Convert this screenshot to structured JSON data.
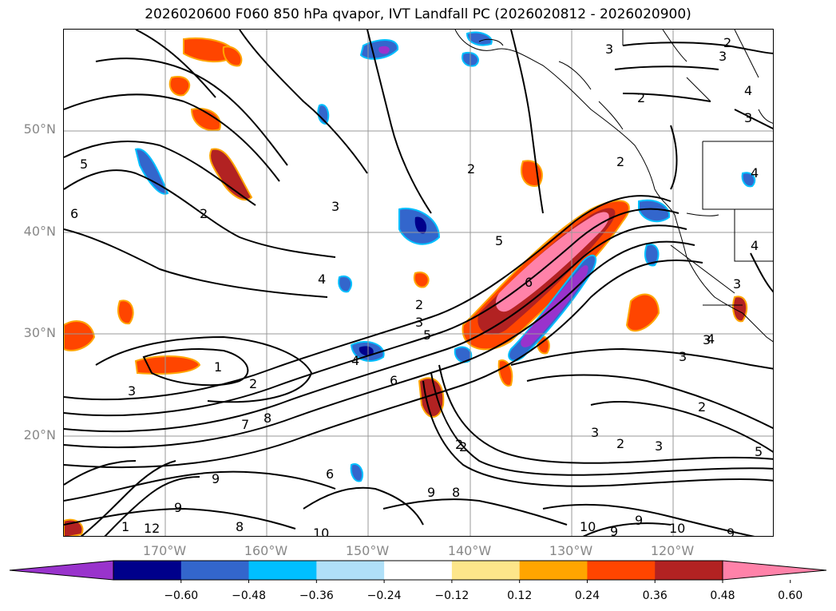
{
  "title": "2026020600 F060 850 hPa qvapor, IVT Landfall PC (2026020812 - 2026020900)",
  "lat_labels": [
    "50°N",
    "40°N",
    "30°N",
    "20°N"
  ],
  "lon_labels": [
    "170°W",
    "160°W",
    "150°W",
    "140°W",
    "130°W",
    "120°W"
  ],
  "colorbar": {
    "colors": [
      "#9933cc",
      "#00008b",
      "#3366cc",
      "#00bfff",
      "#b0e0f8",
      "#ffffff",
      "#fde68a",
      "#ffa500",
      "#ff4500",
      "#b22222",
      "#ff82a9"
    ],
    "tick_labels": [
      "−0.60",
      "−0.48",
      "−0.36",
      "−0.24",
      "−0.12",
      "0.12",
      "0.24",
      "0.36",
      "0.48",
      "0.60"
    ]
  },
  "contour_labels": [
    "2",
    "3",
    "2",
    "3",
    "4",
    "3",
    "2",
    "5",
    "6",
    "2",
    "3",
    "4",
    "6",
    "2",
    "1",
    "2",
    "3",
    "5",
    "4",
    "6",
    "7",
    "8",
    "1",
    "2",
    "3",
    "2",
    "3",
    "2",
    "3",
    "4",
    "9",
    "6",
    "9",
    "8",
    "9",
    "12",
    "10",
    "9",
    "9",
    "10",
    "9",
    "8",
    "10",
    "4",
    "3",
    "2",
    "5",
    "3",
    "4",
    "5",
    "2",
    "3"
  ]
}
